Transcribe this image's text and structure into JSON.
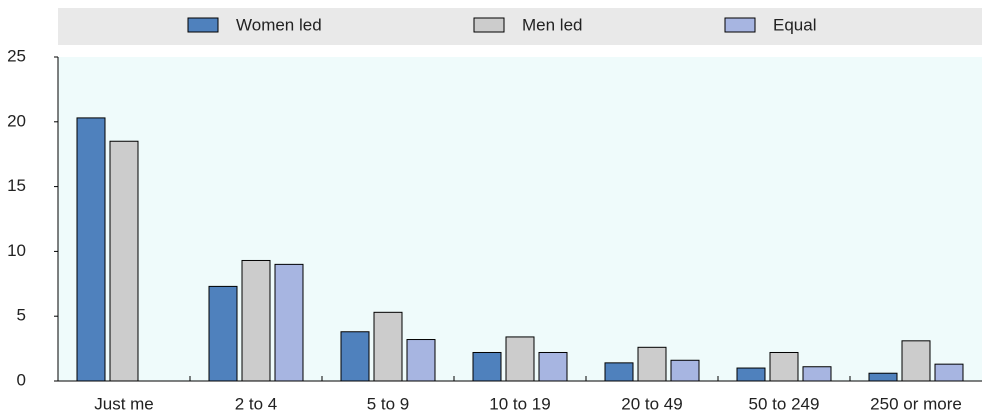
{
  "chart_data": {
    "type": "bar",
    "categories": [
      "Just me",
      "2 to 4",
      "5 to 9",
      "10 to 19",
      "20 to 49",
      "50 to 249",
      "250 or more"
    ],
    "series": [
      {
        "name": "Women led",
        "color": "#4f81bd",
        "values": [
          20.3,
          7.3,
          3.8,
          2.2,
          1.4,
          1.0,
          0.6
        ]
      },
      {
        "name": "Men led",
        "color": "#cccccc",
        "values": [
          18.5,
          9.3,
          5.3,
          3.4,
          2.6,
          2.2,
          3.1
        ]
      },
      {
        "name": "Equal",
        "color": "#a7b5e1",
        "values": [
          0,
          9.0,
          3.2,
          2.2,
          1.6,
          1.1,
          1.3
        ]
      }
    ],
    "ylim": [
      0,
      25
    ],
    "yticks": [
      0,
      5,
      10,
      15,
      20,
      25
    ]
  }
}
